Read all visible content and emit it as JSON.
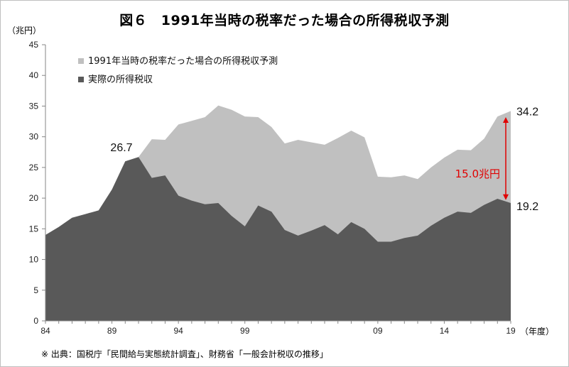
{
  "title": "図６　1991年当時の税率だった場合の所得税収予測",
  "y_unit": "（兆円）",
  "x_unit": "（年度）",
  "source": "※ 出典：国税庁「民間給与実態統計調査」、財務省「一般会計税収の推移」",
  "chart_data": {
    "type": "area",
    "title": "図６　1991年当時の税率だった場合の所得税収予測",
    "ylim": [
      0,
      45
    ],
    "yticks": [
      0,
      5,
      10,
      15,
      20,
      25,
      30,
      35,
      40,
      45
    ],
    "xlim": [
      1984,
      2019
    ],
    "xticks": [
      1984,
      1989,
      1994,
      1999,
      2009,
      2014,
      2019
    ],
    "xtick_labels": [
      "84",
      "89",
      "94",
      "99",
      "09",
      "14",
      "19"
    ],
    "legend_position": "top-left",
    "grid": false,
    "x": [
      1984,
      1985,
      1986,
      1987,
      1988,
      1989,
      1990,
      1991,
      1992,
      1993,
      1994,
      1995,
      1996,
      1997,
      1998,
      1999,
      2000,
      2001,
      2002,
      2003,
      2004,
      2005,
      2006,
      2007,
      2008,
      2009,
      2010,
      2011,
      2012,
      2013,
      2014,
      2015,
      2016,
      2017,
      2018,
      2019
    ],
    "series": [
      {
        "name": "1991年当時の税率だった場合の所得税収予測",
        "color": "#c0c0c0",
        "values": [
          14.0,
          15.3,
          16.8,
          17.4,
          18.0,
          21.4,
          26.0,
          26.7,
          29.6,
          29.5,
          32.0,
          32.6,
          33.2,
          35.1,
          34.4,
          33.3,
          33.2,
          31.6,
          28.9,
          29.5,
          29.1,
          28.7,
          29.8,
          31.0,
          29.9,
          23.5,
          23.4,
          23.7,
          23.1,
          25.0,
          26.6,
          27.9,
          27.8,
          29.7,
          33.3,
          34.2
        ]
      },
      {
        "name": "実際の所得税収",
        "color": "#595959",
        "values": [
          14.0,
          15.3,
          16.8,
          17.4,
          18.0,
          21.4,
          26.0,
          26.7,
          23.3,
          23.7,
          20.4,
          19.6,
          19.0,
          19.2,
          17.1,
          15.4,
          18.8,
          17.8,
          14.8,
          13.9,
          14.7,
          15.6,
          14.1,
          16.1,
          15.0,
          12.9,
          12.9,
          13.5,
          13.9,
          15.5,
          16.8,
          17.8,
          17.6,
          18.9,
          19.9,
          19.2
        ]
      }
    ],
    "annotations": {
      "peak_1991": "26.7",
      "end_projected": "34.2",
      "end_actual": "19.2",
      "gap": "15.0兆円"
    }
  }
}
